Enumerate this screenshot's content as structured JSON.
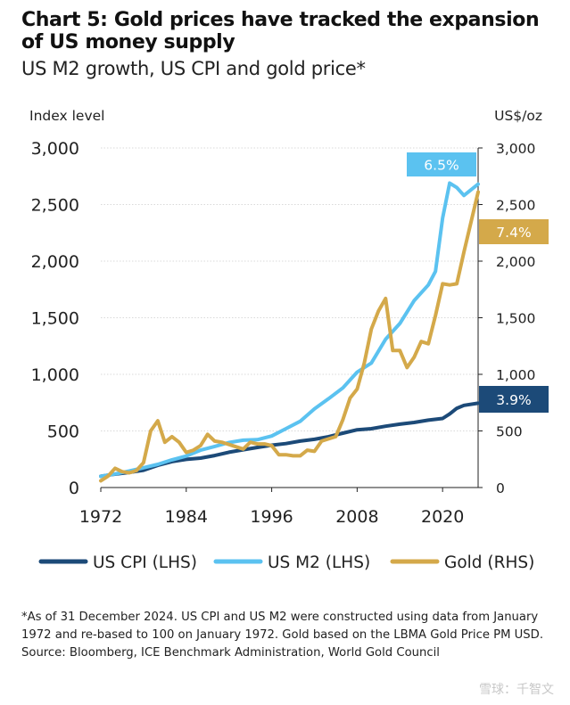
{
  "title": "Chart 5: Gold prices have tracked the expansion of US money supply",
  "subtitle": "US M2 growth, US CPI and gold price*",
  "footnote": {
    "note": "*As of 31 December 2024. US CPI and US M2 were constructed using data from January 1972 and re-based to 100 on January 1972. Gold based on the LBMA Gold Price PM USD.",
    "source": "Source: Bloomberg, ICE Benchmark Administration, World Gold Council"
  },
  "watermark": "雪球：千智文",
  "colors": {
    "cpi": "#1c4a78",
    "m2": "#5bc2f0",
    "gold": "#d4a94a"
  },
  "chart_data": {
    "type": "line",
    "ylabel_left": "Index level",
    "ylabel_right": "US$/oz",
    "ylim_left": [
      0,
      3000
    ],
    "ylim_right": [
      0,
      3000
    ],
    "y_ticks_left": [
      "0",
      "500",
      "1,000",
      "1,500",
      "2,000",
      "2,500",
      "3,000"
    ],
    "y_ticks_right": [
      "0",
      "500",
      "1,000",
      "1,500",
      "2,000",
      "2,500",
      "3,000"
    ],
    "x_ticks": [
      "1972",
      "1984",
      "1996",
      "2008",
      "2020"
    ],
    "xlim": [
      1972,
      2024.99
    ],
    "legend_position": "bottom",
    "series": [
      {
        "name": "US CPI (LHS)",
        "axis": "left",
        "color": "cpi",
        "end_label": "3.9%",
        "x": [
          1972,
          1974,
          1976,
          1978,
          1980,
          1982,
          1984,
          1986,
          1988,
          1990,
          1992,
          1994,
          1996,
          1998,
          2000,
          2002,
          2004,
          2006,
          2008,
          2010,
          2012,
          2014,
          2016,
          2018,
          2020,
          2021,
          2022,
          2023,
          2024.99
        ],
        "y": [
          100,
          118,
          134,
          153,
          196,
          229,
          249,
          260,
          283,
          312,
          334,
          354,
          374,
          388,
          410,
          426,
          449,
          480,
          510,
          520,
          542,
          560,
          575,
          595,
          610,
          650,
          700,
          726,
          745
        ]
      },
      {
        "name": "US M2 (LHS)",
        "axis": "left",
        "color": "m2",
        "end_label": "6.5%",
        "x": [
          1972,
          1974,
          1976,
          1978,
          1980,
          1982,
          1984,
          1986,
          1988,
          1990,
          1992,
          1994,
          1996,
          1998,
          2000,
          2002,
          2004,
          2006,
          2008,
          2010,
          2012,
          2014,
          2016,
          2018,
          2019,
          2020,
          2021,
          2022,
          2023,
          2024.99
        ],
        "y": [
          100,
          120,
          146,
          175,
          205,
          245,
          278,
          330,
          363,
          398,
          418,
          423,
          455,
          520,
          585,
          695,
          785,
          880,
          1020,
          1100,
          1310,
          1450,
          1650,
          1790,
          1910,
          2380,
          2690,
          2650,
          2580,
          2680
        ]
      },
      {
        "name": "Gold (RHS)",
        "axis": "right",
        "color": "gold",
        "end_label": "7.4%",
        "x": [
          1972,
          1973,
          1974,
          1975,
          1976,
          1977,
          1978,
          1979,
          1980,
          1981,
          1982,
          1983,
          1984,
          1985,
          1986,
          1987,
          1988,
          1989,
          1990,
          1991,
          1992,
          1993,
          1994,
          1995,
          1996,
          1997,
          1998,
          1999,
          2000,
          2001,
          2002,
          2003,
          2004,
          2005,
          2006,
          2007,
          2008,
          2009,
          2010,
          2011,
          2012,
          2013,
          2014,
          2015,
          2016,
          2017,
          2018,
          2019,
          2020,
          2021,
          2022,
          2023,
          2024.99
        ],
        "y": [
          60,
          100,
          170,
          140,
          130,
          150,
          220,
          500,
          590,
          400,
          450,
          400,
          310,
          330,
          370,
          470,
          410,
          400,
          380,
          360,
          340,
          400,
          385,
          385,
          370,
          290,
          290,
          280,
          280,
          330,
          320,
          410,
          430,
          450,
          600,
          790,
          870,
          1100,
          1400,
          1560,
          1670,
          1210,
          1210,
          1060,
          1150,
          1290,
          1270,
          1520,
          1800,
          1790,
          1800,
          2080,
          2610
        ]
      }
    ]
  }
}
